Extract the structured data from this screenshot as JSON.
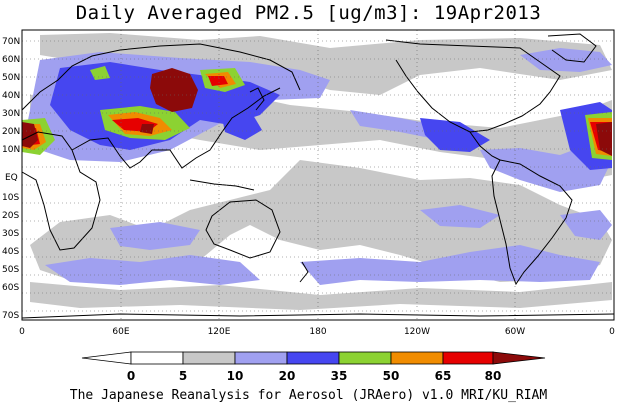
{
  "title": "Daily Averaged PM2.5 [ug/m3]: 19Apr2013",
  "footer": "The Japanese Reanalysis for Aerosol (JRAero) v1.0 MRI/KU_RIAM",
  "lat_labels": [
    "70N",
    "60N",
    "50N",
    "40N",
    "30N",
    "20N",
    "10N",
    "EQ",
    "10S",
    "20S",
    "30S",
    "40S",
    "50S",
    "60S",
    "70S"
  ],
  "lon_labels": [
    "0",
    "60E",
    "120E",
    "180",
    "120W",
    "60W",
    "0"
  ],
  "colorbar": {
    "ticks": [
      "0",
      "5",
      "10",
      "20",
      "35",
      "50",
      "65",
      "80"
    ],
    "colors": [
      "#ffffff",
      "#c8c8c8",
      "#a0a0f0",
      "#4646f0",
      "#8cd232",
      "#f08c00",
      "#e60000",
      "#8c0a0a"
    ]
  },
  "legend_levels": {
    "gray": "5-10",
    "light_blue": "10-20",
    "blue": "20-35",
    "green": "35-50",
    "orange": "50-65",
    "red": "65-80",
    "dark_red": ">80"
  }
}
